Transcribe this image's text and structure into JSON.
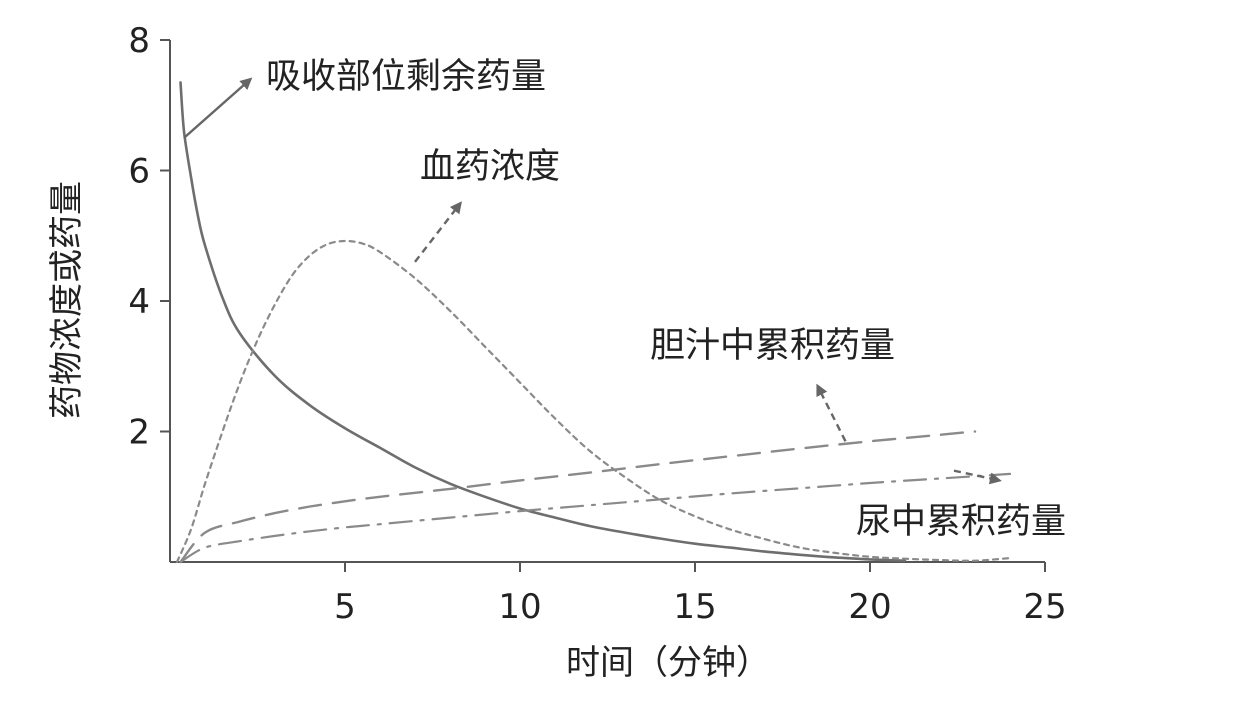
{
  "chart_data": {
    "type": "line",
    "xlabel": "时间（分钟）",
    "ylabel": "药物浓度或药量",
    "xlim": [
      0,
      25
    ],
    "ylim": [
      0,
      8
    ],
    "x_ticks": [
      5,
      10,
      15,
      20,
      25
    ],
    "y_ticks": [
      2,
      4,
      6,
      8
    ],
    "grid": false,
    "colors": {
      "solid": "#6e6e6e",
      "dotted": "#8a8a8a",
      "dashed": "#8a8a8a",
      "dashdot": "#8a8a8a",
      "arrow": "#666666",
      "axis": "#555555"
    },
    "series": [
      {
        "name": "吸收部位剩余药量",
        "style": "solid",
        "x": [
          0.3,
          0.4,
          0.6,
          0.8,
          1,
          1.5,
          2,
          3,
          4,
          5,
          6,
          7,
          8,
          9,
          10,
          11,
          12,
          13,
          14,
          15,
          16,
          17,
          18,
          19,
          20,
          21
        ],
        "y": [
          7.35,
          6.6,
          5.9,
          5.3,
          4.85,
          4.05,
          3.5,
          2.85,
          2.4,
          2.05,
          1.75,
          1.45,
          1.2,
          1.0,
          0.82,
          0.68,
          0.55,
          0.45,
          0.36,
          0.28,
          0.22,
          0.16,
          0.11,
          0.07,
          0.04,
          0.02
        ]
      },
      {
        "name": "血药浓度",
        "style": "dotted",
        "x": [
          0.2,
          0.6,
          1,
          1.5,
          2,
          2.5,
          3,
          3.5,
          4,
          4.5,
          5,
          5.5,
          6,
          7,
          8,
          9,
          10,
          11,
          12,
          13,
          14,
          15,
          16,
          17,
          18,
          19,
          20,
          21,
          22,
          23,
          24
        ],
        "y": [
          0,
          0.5,
          1.2,
          2.0,
          2.75,
          3.4,
          3.95,
          4.4,
          4.7,
          4.87,
          4.92,
          4.88,
          4.75,
          4.35,
          3.85,
          3.3,
          2.75,
          2.2,
          1.7,
          1.3,
          0.95,
          0.7,
          0.5,
          0.35,
          0.22,
          0.14,
          0.08,
          0.05,
          0.03,
          0.02,
          0.06
        ]
      },
      {
        "name": "胆汁中累积药量",
        "style": "dashed",
        "x": [
          0.3,
          1,
          2,
          3,
          4,
          5,
          6,
          8,
          10,
          12,
          14,
          16,
          18,
          20,
          22,
          23
        ],
        "y": [
          0,
          0.45,
          0.62,
          0.75,
          0.85,
          0.93,
          1.0,
          1.12,
          1.25,
          1.37,
          1.5,
          1.62,
          1.74,
          1.85,
          1.95,
          2.0
        ]
      },
      {
        "name": "尿中累积药量",
        "style": "dashdot",
        "x": [
          0.3,
          1,
          2,
          3,
          4,
          5,
          6,
          8,
          10,
          12,
          14,
          16,
          18,
          20,
          22,
          24
        ],
        "y": [
          0,
          0.22,
          0.32,
          0.4,
          0.47,
          0.53,
          0.58,
          0.68,
          0.78,
          0.87,
          0.96,
          1.05,
          1.13,
          1.21,
          1.28,
          1.35
        ]
      }
    ],
    "annotations": [
      {
        "text": "吸收部位剩余药量",
        "series": "吸收部位剩余药量",
        "arrow_from": [
          0.4,
          6.5
        ],
        "arrow_to": [
          2.3,
          7.4
        ]
      },
      {
        "text": "血药浓度",
        "series": "血药浓度",
        "arrow_from": [
          7.0,
          4.6
        ],
        "arrow_to": [
          8.3,
          5.5
        ]
      },
      {
        "text": "胆汁中累积药量",
        "series": "胆汁中累积药量",
        "arrow_from": [
          19.3,
          1.85
        ],
        "arrow_to": [
          18.5,
          2.7
        ]
      },
      {
        "text": "尿中累积药量",
        "series": "尿中累积药量",
        "arrow_from": [
          22.4,
          1.4
        ],
        "arrow_to": [
          23.7,
          1.25
        ]
      }
    ]
  }
}
